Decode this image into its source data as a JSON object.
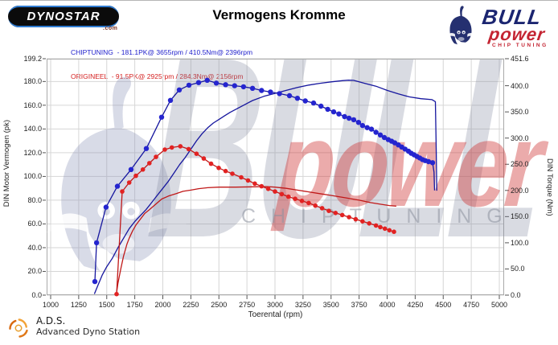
{
  "header": {
    "logo_left": {
      "brand": "DYNOSTAR",
      "suffix": ".com"
    },
    "title": "Vermogens Kromme",
    "logo_right": {
      "brand_top": "BULL",
      "brand_mid": "power",
      "brand_sub": "CHIP TUNING"
    }
  },
  "watermark": {
    "word_bull": "BULL",
    "word_power": "power",
    "word_chip": "C H I P   T U N I N G"
  },
  "footer": {
    "abbr": "A.D.S.",
    "name": "Advanced Dyno Station"
  },
  "chart_data": {
    "type": "line",
    "title": "Vermogens Kromme",
    "xlabel": "Toerental (rpm)",
    "ylabel_left": "DIN Motor Vermogen (pk)",
    "ylabel_right": "DIN Torque (Nm)",
    "x_range": [
      1000,
      5000
    ],
    "y_left_range": [
      0,
      199.2
    ],
    "y_right_range": [
      0,
      451.6
    ],
    "grid": true,
    "x_ticks": [
      "1000",
      "1250",
      "1500",
      "1750",
      "2000",
      "2250",
      "2500",
      "2750",
      "3000",
      "3250",
      "3500",
      "3750",
      "4000",
      "4250",
      "4500",
      "4750",
      "5000"
    ],
    "y_left_ticks": [
      "0.0",
      "20.0",
      "40.0",
      "60.0",
      "80.0",
      "100.0",
      "120.0",
      "140.0",
      "160.0",
      "180.0",
      "199.2"
    ],
    "y_right_ticks": [
      "0.0",
      "50.0",
      "100.0",
      "150.0",
      "200.0",
      "250.0",
      "300.0",
      "350.0",
      "400.0",
      "451.6"
    ],
    "legend": [
      {
        "label": "CHIPTUNING  - 181.1PK@ 3655rpm / 410.5Nm@ 2396rpm",
        "color": "#2020cc"
      },
      {
        "label": "ORIGINEEL  - 91.5PK@ 2925rpm / 284.3Nm@ 2156rpm",
        "color": "#d42020"
      }
    ],
    "series": [
      {
        "name": "chiptuning-vermogen-pk",
        "axis": "left",
        "unit": "pk",
        "color": "#16169e",
        "markers": false,
        "peak": {
          "value": 181.1,
          "rpm": 3655
        },
        "points": [
          [
            1390,
            1
          ],
          [
            1420,
            8
          ],
          [
            1460,
            17
          ],
          [
            1500,
            24
          ],
          [
            1550,
            31
          ],
          [
            1600,
            40
          ],
          [
            1650,
            48
          ],
          [
            1700,
            56
          ],
          [
            1750,
            62
          ],
          [
            1800,
            67
          ],
          [
            1850,
            72
          ],
          [
            1900,
            78
          ],
          [
            1950,
            84
          ],
          [
            2000,
            90
          ],
          [
            2050,
            96
          ],
          [
            2100,
            103
          ],
          [
            2150,
            110
          ],
          [
            2200,
            116
          ],
          [
            2250,
            123
          ],
          [
            2300,
            130
          ],
          [
            2350,
            136
          ],
          [
            2400,
            141
          ],
          [
            2450,
            145
          ],
          [
            2500,
            148
          ],
          [
            2550,
            151
          ],
          [
            2600,
            154
          ],
          [
            2700,
            159
          ],
          [
            2800,
            164
          ],
          [
            2900,
            167.5
          ],
          [
            3000,
            170
          ],
          [
            3100,
            172.5
          ],
          [
            3200,
            175
          ],
          [
            3300,
            177
          ],
          [
            3400,
            178.5
          ],
          [
            3500,
            179.7
          ],
          [
            3600,
            180.7
          ],
          [
            3655,
            181.1
          ],
          [
            3700,
            181
          ],
          [
            3800,
            178.5
          ],
          [
            3900,
            176
          ],
          [
            4000,
            172.5
          ],
          [
            4100,
            169.5
          ],
          [
            4200,
            167
          ],
          [
            4300,
            165.5
          ],
          [
            4400,
            164.7
          ],
          [
            4430,
            163
          ],
          [
            4438,
            120
          ],
          [
            4442,
            88
          ]
        ]
      },
      {
        "name": "chiptuning-koppel-nm",
        "axis": "right",
        "unit": "Nm",
        "color": "#16169e",
        "markers": true,
        "marker_color": "#2525cf",
        "marker_r": 3.2,
        "peak": {
          "value": 410.5,
          "rpm": 2396
        },
        "points": [
          [
            1394,
            26
          ],
          [
            1409,
            100
          ],
          [
            1494,
            168
          ],
          [
            1595,
            208
          ],
          [
            1717,
            240
          ],
          [
            1853,
            280
          ],
          [
            1989,
            340
          ],
          [
            2068,
            372
          ],
          [
            2147,
            392
          ],
          [
            2233,
            401
          ],
          [
            2319,
            406
          ],
          [
            2396,
            410.5
          ],
          [
            2477,
            405
          ],
          [
            2560,
            402
          ],
          [
            2640,
            400
          ],
          [
            2720,
            398
          ],
          [
            2800,
            395
          ],
          [
            2880,
            391
          ],
          [
            2960,
            388
          ],
          [
            3040,
            385
          ],
          [
            3129,
            381
          ],
          [
            3200,
            376
          ],
          [
            3270,
            371
          ],
          [
            3344,
            367
          ],
          [
            3410,
            361
          ],
          [
            3470,
            355
          ],
          [
            3523,
            350
          ],
          [
            3570,
            346
          ],
          [
            3620,
            341
          ],
          [
            3660,
            338
          ],
          [
            3702,
            335
          ],
          [
            3745,
            330
          ],
          [
            3781,
            324
          ],
          [
            3822,
            320
          ],
          [
            3860,
            317
          ],
          [
            3900,
            311
          ],
          [
            3939,
            306
          ],
          [
            3975,
            301
          ],
          [
            4010,
            297
          ],
          [
            4040,
            294
          ],
          [
            4068,
            291
          ],
          [
            4100,
            287
          ],
          [
            4130,
            283
          ],
          [
            4160,
            279
          ],
          [
            4190,
            275
          ],
          [
            4215,
            271
          ],
          [
            4240,
            268
          ],
          [
            4265,
            265
          ],
          [
            4290,
            262
          ],
          [
            4315,
            259
          ],
          [
            4340,
            257
          ],
          [
            4369,
            255
          ],
          [
            4405,
            253
          ]
        ],
        "tail": [
          [
            4418,
            235
          ],
          [
            4423,
            200
          ]
        ]
      },
      {
        "name": "origineel-vermogen-pk",
        "axis": "left",
        "unit": "pk",
        "color": "#c01818",
        "markers": false,
        "peak": {
          "value": 91.5,
          "rpm": 2925
        },
        "points": [
          [
            1588,
            2
          ],
          [
            1600,
            10
          ],
          [
            1625,
            22
          ],
          [
            1650,
            33
          ],
          [
            1680,
            43
          ],
          [
            1700,
            48
          ],
          [
            1730,
            54
          ],
          [
            1760,
            59
          ],
          [
            1800,
            64
          ],
          [
            1840,
            69
          ],
          [
            1880,
            72
          ],
          [
            1930,
            76
          ],
          [
            1990,
            81
          ],
          [
            2050,
            83.5
          ],
          [
            2120,
            85.5
          ],
          [
            2180,
            87.5
          ],
          [
            2250,
            88.5
          ],
          [
            2320,
            89.7
          ],
          [
            2400,
            90.5
          ],
          [
            2500,
            91
          ],
          [
            2650,
            91
          ],
          [
            2800,
            91.3
          ],
          [
            2925,
            91.5
          ],
          [
            3000,
            91
          ],
          [
            3100,
            90
          ],
          [
            3200,
            88.5
          ],
          [
            3300,
            87
          ],
          [
            3400,
            85.5
          ],
          [
            3500,
            84
          ],
          [
            3630,
            82
          ],
          [
            3750,
            80
          ],
          [
            3850,
            78
          ],
          [
            3950,
            76.5
          ],
          [
            4020,
            75.5
          ],
          [
            4082,
            75
          ]
        ]
      },
      {
        "name": "origineel-koppel-nm",
        "axis": "right",
        "unit": "Nm",
        "color": "#c01818",
        "markers": true,
        "marker_color": "#e22222",
        "marker_r": 2.8,
        "peak": {
          "value": 284.3,
          "rpm": 2156
        },
        "points": [
          [
            1588,
            2
          ],
          [
            1638,
            198
          ],
          [
            1700,
            215
          ],
          [
            1760,
            228
          ],
          [
            1822,
            240
          ],
          [
            1880,
            252
          ],
          [
            1939,
            264
          ],
          [
            2018,
            278
          ],
          [
            2080,
            282
          ],
          [
            2156,
            284.3
          ],
          [
            2230,
            279
          ],
          [
            2300,
            270
          ],
          [
            2365,
            261
          ],
          [
            2430,
            251
          ],
          [
            2498,
            243
          ],
          [
            2560,
            237
          ],
          [
            2620,
            232
          ],
          [
            2699,
            225
          ],
          [
            2760,
            219
          ],
          [
            2820,
            213
          ],
          [
            2880,
            208
          ],
          [
            2940,
            203
          ],
          [
            3000,
            198
          ],
          [
            3060,
            193
          ],
          [
            3120,
            188
          ],
          [
            3180,
            184
          ],
          [
            3240,
            180
          ],
          [
            3300,
            176
          ],
          [
            3360,
            171
          ],
          [
            3420,
            166
          ],
          [
            3480,
            161
          ],
          [
            3540,
            157
          ],
          [
            3600,
            153
          ],
          [
            3660,
            149
          ],
          [
            3720,
            145
          ],
          [
            3780,
            141
          ],
          [
            3840,
            137
          ],
          [
            3900,
            133
          ],
          [
            3939,
            130
          ],
          [
            3980,
            127
          ],
          [
            4020,
            124
          ],
          [
            4061,
            121
          ]
        ]
      }
    ]
  }
}
